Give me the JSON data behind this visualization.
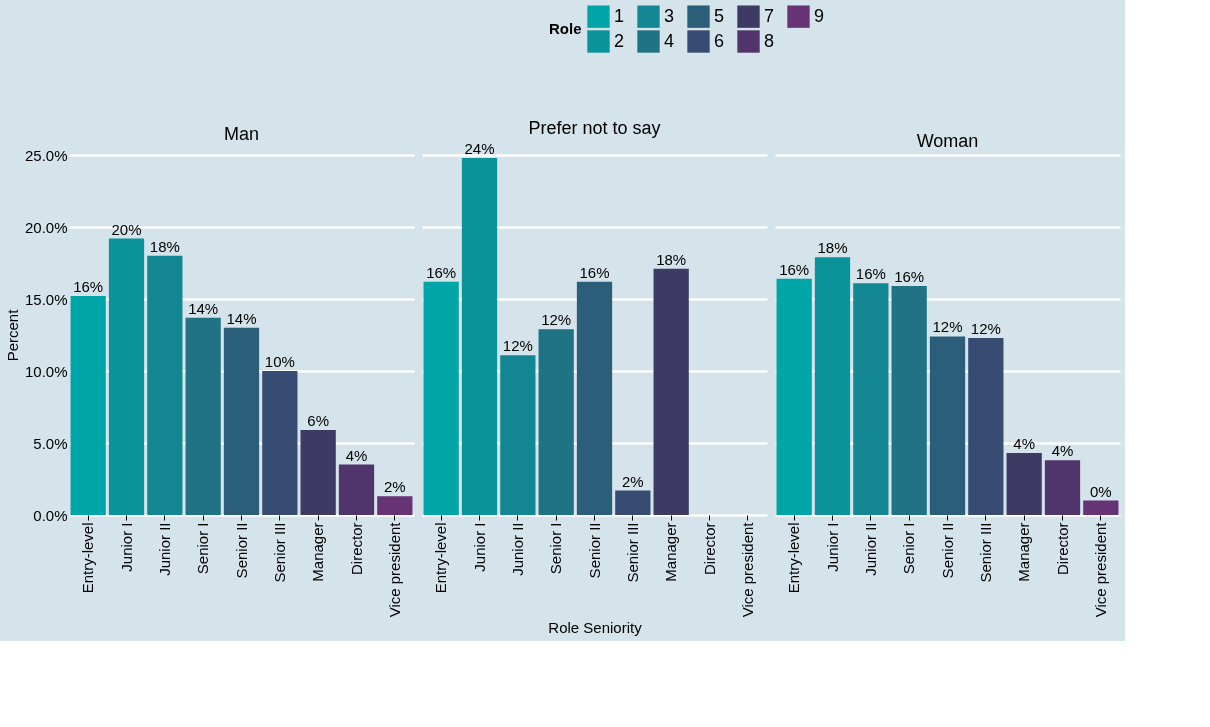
{
  "chart_data": [
    {
      "type": "bar",
      "title": "Man",
      "ylabel": "Percent",
      "legend_title": "Role",
      "legend": "top",
      "grid": "y",
      "categories": [
        "Entry-level",
        "Junior I",
        "Junior II",
        "Senior I",
        "Senior II",
        "Senior III",
        "Manager",
        "Director",
        "Vice president"
      ],
      "ylim": [
        0,
        25
      ],
      "yticks": [
        {
          "value": 0,
          "label": "0.0%"
        },
        {
          "value": 5,
          "label": "5.0%"
        },
        {
          "value": 10,
          "label": "10.0%"
        },
        {
          "value": 15,
          "label": "15.0%"
        },
        {
          "value": 20,
          "label": "20.0%"
        },
        {
          "value": 25,
          "label": "25.0%"
        }
      ],
      "series": [
        {
          "name": "1",
          "color": "#00a5a8",
          "values": [
            15.2,
            null,
            null,
            null,
            null,
            null,
            null,
            null,
            null
          ]
        },
        {
          "name": "2",
          "color": "#0b939c",
          "values": [
            null,
            19.2,
            null,
            null,
            null,
            null,
            null,
            null,
            null
          ]
        },
        {
          "name": "3",
          "color": "#138693",
          "values": [
            null,
            null,
            18.0,
            null,
            null,
            null,
            null,
            null,
            null
          ]
        },
        {
          "name": "4",
          "color": "#207385",
          "values": [
            null,
            null,
            null,
            13.7,
            null,
            null,
            null,
            null,
            null
          ]
        },
        {
          "name": "5",
          "color": "#2b5f79",
          "values": [
            null,
            null,
            null,
            null,
            13.0,
            null,
            null,
            null,
            null
          ]
        },
        {
          "name": "6",
          "color": "#384b72",
          "values": [
            null,
            null,
            null,
            null,
            null,
            10.0,
            null,
            null,
            null
          ]
        },
        {
          "name": "7",
          "color": "#3d3b63",
          "values": [
            null,
            null,
            null,
            null,
            null,
            null,
            5.9,
            null,
            null
          ]
        },
        {
          "name": "8",
          "color": "#51346b",
          "values": [
            null,
            null,
            null,
            null,
            null,
            null,
            null,
            3.5,
            null
          ]
        },
        {
          "name": "9",
          "color": "#663375",
          "values": [
            null,
            null,
            null,
            null,
            null,
            null,
            null,
            null,
            1.3
          ]
        }
      ],
      "value_labels": [
        "16%",
        "20%",
        "18%",
        "14%",
        "14%",
        "10%",
        "6%",
        "4%",
        "2%"
      ]
    },
    {
      "type": "bar",
      "title": "Prefer not to say",
      "xlabel": "Role Seniority",
      "grid": "y",
      "tick_labels": "x",
      "categories": [
        "Entry-level",
        "Junior I",
        "Junior II",
        "Senior I",
        "Senior II",
        "Senior III",
        "Manager",
        "Director",
        "Vice president"
      ],
      "ylim": [
        0,
        25
      ],
      "yticks": [
        {
          "value": 0,
          "label": null
        },
        {
          "value": 5,
          "label": null
        },
        {
          "value": 10,
          "label": null
        },
        {
          "value": 15,
          "label": null
        },
        {
          "value": 20,
          "label": null
        },
        {
          "value": 25,
          "label": null
        }
      ],
      "series": [
        {
          "name": "1",
          "color": "#00a5a8",
          "values": [
            16.2,
            null,
            null,
            null,
            null,
            null,
            null,
            null,
            null
          ]
        },
        {
          "name": "2",
          "color": "#0b939c",
          "values": [
            null,
            24.8,
            null,
            null,
            null,
            null,
            null,
            null,
            null
          ]
        },
        {
          "name": "3",
          "color": "#138693",
          "values": [
            null,
            null,
            11.1,
            null,
            null,
            null,
            null,
            null,
            null
          ]
        },
        {
          "name": "4",
          "color": "#207385",
          "values": [
            null,
            null,
            null,
            12.9,
            null,
            null,
            null,
            null,
            null
          ]
        },
        {
          "name": "5",
          "color": "#2b5f79",
          "values": [
            null,
            null,
            null,
            null,
            16.2,
            null,
            null,
            null,
            null
          ]
        },
        {
          "name": "6",
          "color": "#384b72",
          "values": [
            null,
            null,
            null,
            null,
            null,
            1.7,
            null,
            null,
            null
          ]
        },
        {
          "name": "7",
          "color": "#3d3b63",
          "values": [
            null,
            null,
            null,
            null,
            null,
            null,
            17.1,
            null,
            null
          ]
        },
        {
          "name": "8",
          "color": "#51346b",
          "values": [
            null,
            null,
            null,
            null,
            null,
            null,
            null,
            0,
            null
          ]
        },
        {
          "name": "9",
          "color": "#663375",
          "values": [
            null,
            null,
            null,
            null,
            null,
            null,
            null,
            null,
            0
          ]
        }
      ],
      "value_labels": [
        "16%",
        "24%",
        "12%",
        "12%",
        "16%",
        "2%",
        "18%",
        null,
        null
      ]
    },
    {
      "type": "bar",
      "title": "Woman",
      "grid": "y",
      "tick_labels": "x",
      "categories": [
        "Entry-level",
        "Junior I",
        "Junior II",
        "Senior I",
        "Senior II",
        "Senior III",
        "Manager",
        "Director",
        "Vice president"
      ],
      "ylim": [
        0,
        25
      ],
      "yticks": [
        {
          "value": 0,
          "label": null
        },
        {
          "value": 5,
          "label": null
        },
        {
          "value": 10,
          "label": null
        },
        {
          "value": 15,
          "label": null
        },
        {
          "value": 20,
          "label": null
        },
        {
          "value": 25,
          "label": null
        }
      ],
      "series": [
        {
          "name": "1",
          "color": "#00a5a8",
          "values": [
            16.4,
            null,
            null,
            null,
            null,
            null,
            null,
            null,
            null
          ]
        },
        {
          "name": "2",
          "color": "#0b939c",
          "values": [
            null,
            17.9,
            null,
            null,
            null,
            null,
            null,
            null,
            null
          ]
        },
        {
          "name": "3",
          "color": "#138693",
          "values": [
            null,
            null,
            16.1,
            null,
            null,
            null,
            null,
            null,
            null
          ]
        },
        {
          "name": "4",
          "color": "#207385",
          "values": [
            null,
            null,
            null,
            15.9,
            null,
            null,
            null,
            null,
            null
          ]
        },
        {
          "name": "5",
          "color": "#2b5f79",
          "values": [
            null,
            null,
            null,
            null,
            12.4,
            null,
            null,
            null,
            null
          ]
        },
        {
          "name": "6",
          "color": "#384b72",
          "values": [
            null,
            null,
            null,
            null,
            null,
            12.3,
            null,
            null,
            null
          ]
        },
        {
          "name": "7",
          "color": "#3d3b63",
          "values": [
            null,
            null,
            null,
            null,
            null,
            null,
            4.3,
            null,
            null
          ]
        },
        {
          "name": "8",
          "color": "#51346b",
          "values": [
            null,
            null,
            null,
            null,
            null,
            null,
            null,
            3.8,
            null
          ]
        },
        {
          "name": "9",
          "color": "#663375",
          "values": [
            null,
            null,
            null,
            null,
            null,
            null,
            null,
            null,
            1.0
          ]
        }
      ],
      "value_labels": [
        "16%",
        "18%",
        "16%",
        "16%",
        "12%",
        "12%",
        "4%",
        "4%",
        "0%"
      ]
    }
  ]
}
